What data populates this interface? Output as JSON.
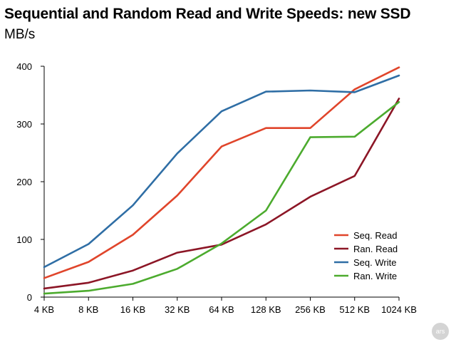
{
  "chart_data": {
    "type": "line",
    "title": "Sequential and Random Read and Write Speeds: new SSD",
    "ylabel": "MB/s",
    "xlabel": "",
    "categories": [
      "4 KB",
      "8 KB",
      "16 KB",
      "32 KB",
      "64 KB",
      "128 KB",
      "256 KB",
      "512 KB",
      "1024 KB"
    ],
    "ylim": [
      0,
      400
    ],
    "yticks": [
      0,
      100,
      200,
      300,
      400
    ],
    "grid": false,
    "legend_position": "bottom-right",
    "series": [
      {
        "name": "Seq. Read",
        "color": "#e0452b",
        "values": [
          33,
          61,
          108,
          176,
          261,
          293,
          293,
          360,
          398
        ]
      },
      {
        "name": "Ran. Read",
        "color": "#8c1626",
        "values": [
          15,
          25,
          46,
          77,
          91,
          126,
          174,
          210,
          344
        ]
      },
      {
        "name": "Seq. Write",
        "color": "#2f6ea5",
        "values": [
          52,
          92,
          159,
          249,
          322,
          356,
          358,
          355,
          384
        ]
      },
      {
        "name": "Ran. Write",
        "color": "#4cab2e",
        "values": [
          6,
          11,
          23,
          49,
          93,
          150,
          277,
          278,
          338
        ]
      }
    ]
  },
  "logo_text": "ars"
}
